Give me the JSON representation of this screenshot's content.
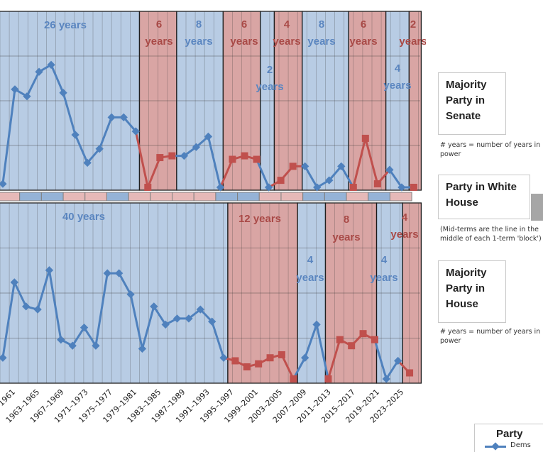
{
  "chart_data": {
    "type": "line",
    "x_tick_labels": [
      "1961",
      "1963–1965",
      "1967–1969",
      "1971–1973",
      "1975–1977",
      "1979–1981",
      "1983–1985",
      "1987–1989",
      "1991–1993",
      "1995–1997",
      "1999–2001",
      "2003–2005",
      "2007–2009",
      "2011–2013",
      "2015–2017",
      "2019–2021",
      "2023–2025"
    ],
    "senate": {
      "series_values": [
        0.1,
        2.8,
        2.6,
        3.3,
        3.5,
        2.7,
        1.5,
        0.7,
        1.1,
        2.0,
        2.0,
        1.6,
        0.0,
        0.85,
        0.9,
        0.9,
        1.15,
        1.45,
        0.0,
        0.8,
        0.9,
        0.8,
        0.0,
        0.2,
        0.6,
        0.6,
        0.0,
        0.2,
        0.6,
        0.0,
        1.4,
        0.1,
        0.5,
        0.0,
        0.0,
        0.0
      ],
      "series_party": [
        "D",
        "D",
        "D",
        "D",
        "D",
        "D",
        "D",
        "D",
        "D",
        "D",
        "D",
        "D",
        "D",
        "D",
        "D",
        "D",
        "D",
        "D",
        "D",
        "D",
        "D",
        "D",
        "D",
        "D",
        "D",
        "D",
        "D",
        "D",
        "D",
        "D",
        "D",
        "D",
        "D",
        "D",
        "D",
        "D"
      ],
      "blocks": [
        {
          "party": "D",
          "label": "26 years"
        },
        {
          "party": "R",
          "label": "6 years"
        },
        {
          "party": "D",
          "label": "8 years"
        },
        {
          "party": "R",
          "label": "6 years"
        },
        {
          "party": "D",
          "label": "2 years"
        },
        {
          "party": "R",
          "label": "4 years"
        },
        {
          "party": "D",
          "label": "8 years"
        },
        {
          "party": "R",
          "label": "6 years"
        },
        {
          "party": "D",
          "label": "4 years"
        },
        {
          "party": "R",
          "label": "2 years"
        }
      ]
    },
    "house": {
      "blocks": [
        {
          "party": "D",
          "label": "40 years"
        },
        {
          "party": "R",
          "label": "12 years"
        },
        {
          "party": "D",
          "label": "4 years"
        },
        {
          "party": "R",
          "label": "8 years"
        },
        {
          "party": "D",
          "label": "4 years"
        },
        {
          "party": "R",
          "label": "4 years"
        }
      ]
    },
    "white_house_terms": [
      "R",
      "D",
      "D",
      "R",
      "R",
      "D",
      "R",
      "R",
      "R",
      "R",
      "D",
      "D",
      "R",
      "R",
      "D",
      "D",
      "R",
      "D",
      "R"
    ],
    "colors": {
      "dem": "#4f81bd",
      "rep": "#c0504d",
      "dem_fill": "#b8cce4",
      "rep_fill": "#d9a5a4",
      "dem_text": "#5b86c0",
      "rep_text": "#a94a47"
    }
  },
  "side_boxes": {
    "senate_title": "Majority Party in Senate",
    "senate_note": "# years = number of years in power",
    "white_house_title": "Party in White House",
    "white_house_note": "(Mid-terms are the line in the middle of each 1-term 'block')",
    "house_title": "Majority Party in House",
    "house_note": "# years = number of years in power"
  },
  "legend": {
    "title": "Party",
    "dem_label": "Dems"
  }
}
